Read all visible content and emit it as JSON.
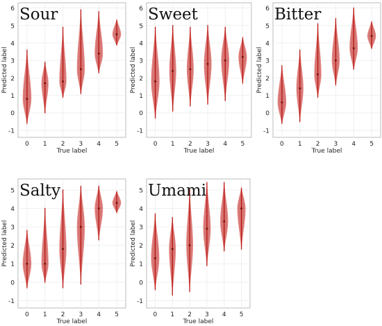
{
  "chart_data": [
    {
      "type": "violin",
      "title": "Sour",
      "xlabel": "True label",
      "ylabel": "Predicted label",
      "categories": [
        "0",
        "1",
        "2",
        "3",
        "4",
        "5"
      ],
      "ylim": [
        -1.4,
        6.3
      ],
      "yticks": [
        "-1",
        "0",
        "1",
        "2",
        "3",
        "4",
        "5",
        "6"
      ],
      "grid": true,
      "series": [
        {
          "values": [
            {
              "x": "0",
              "median": 0.8,
              "min": -0.7,
              "max": 3.7
            },
            {
              "x": "1",
              "median": 1.7,
              "min": -0.1,
              "max": 3.0
            },
            {
              "x": "2",
              "median": 1.8,
              "min": 0.8,
              "max": 5.0
            },
            {
              "x": "3",
              "median": 2.5,
              "min": 1.0,
              "max": 6.0
            },
            {
              "x": "4",
              "median": 3.4,
              "min": 2.2,
              "max": 5.9
            },
            {
              "x": "5",
              "median": 4.5,
              "min": 3.8,
              "max": 5.4
            }
          ]
        }
      ]
    },
    {
      "type": "violin",
      "title": "Sweet",
      "xlabel": "True label",
      "ylabel": "Predicted label",
      "categories": [
        "0",
        "1",
        "2",
        "3",
        "4",
        "5"
      ],
      "ylim": [
        -1.4,
        6.3
      ],
      "yticks": [
        "-1",
        "0",
        "1",
        "2",
        "3",
        "4",
        "5",
        "6"
      ],
      "grid": true,
      "series": [
        {
          "values": [
            {
              "x": "0",
              "median": 1.8,
              "min": -0.4,
              "max": 5.0
            },
            {
              "x": "1",
              "median": 2.4,
              "min": 0.0,
              "max": 5.1
            },
            {
              "x": "2",
              "median": 2.5,
              "min": 0.3,
              "max": 5.0
            },
            {
              "x": "3",
              "median": 2.8,
              "min": 0.4,
              "max": 5.1
            },
            {
              "x": "4",
              "median": 3.0,
              "min": 0.6,
              "max": 5.0
            },
            {
              "x": "5",
              "median": 3.2,
              "min": 1.6,
              "max": 4.4
            }
          ]
        }
      ]
    },
    {
      "type": "violin",
      "title": "Bitter",
      "xlabel": "True label",
      "ylabel": "Predicted label",
      "categories": [
        "0",
        "1",
        "2",
        "3",
        "4",
        "5"
      ],
      "ylim": [
        -1.4,
        6.3
      ],
      "yticks": [
        "-1",
        "0",
        "1",
        "2",
        "3",
        "4",
        "5",
        "6"
      ],
      "grid": true,
      "series": [
        {
          "values": [
            {
              "x": "0",
              "median": 0.6,
              "min": -0.7,
              "max": 2.8
            },
            {
              "x": "1",
              "median": 1.4,
              "min": -0.6,
              "max": 3.7
            },
            {
              "x": "2",
              "median": 2.2,
              "min": 0.8,
              "max": 5.2
            },
            {
              "x": "3",
              "median": 3.0,
              "min": 1.5,
              "max": 5.5
            },
            {
              "x": "4",
              "median": 3.7,
              "min": 2.4,
              "max": 6.1
            },
            {
              "x": "5",
              "median": 4.4,
              "min": 3.6,
              "max": 5.3
            }
          ]
        }
      ]
    },
    {
      "type": "violin",
      "title": "Salty",
      "xlabel": "True label",
      "ylabel": "Predicted label",
      "categories": [
        "0",
        "1",
        "2",
        "3",
        "4",
        "5"
      ],
      "ylim": [
        -1.4,
        5.6
      ],
      "yticks": [
        "-1",
        "0",
        "1",
        "2",
        "3",
        "4",
        "5"
      ],
      "grid": true,
      "series": [
        {
          "values": [
            {
              "x": "0",
              "median": 1.0,
              "min": -0.4,
              "max": 2.9
            },
            {
              "x": "1",
              "median": 1.0,
              "min": -0.1,
              "max": 4.1
            },
            {
              "x": "2",
              "median": 1.8,
              "min": -0.4,
              "max": 5.1
            },
            {
              "x": "3",
              "median": 3.0,
              "min": -0.2,
              "max": 5.3
            },
            {
              "x": "4",
              "median": 4.0,
              "min": 2.2,
              "max": 5.3
            },
            {
              "x": "5",
              "median": 4.3,
              "min": 3.7,
              "max": 5.0
            }
          ]
        }
      ]
    },
    {
      "type": "violin",
      "title": "Umami",
      "xlabel": "True label",
      "ylabel": "Predicted label",
      "categories": [
        "0",
        "1",
        "2",
        "3",
        "4",
        "5"
      ],
      "ylim": [
        -1.4,
        5.6
      ],
      "yticks": [
        "-1",
        "0",
        "1",
        "2",
        "3",
        "4",
        "5"
      ],
      "grid": true,
      "series": [
        {
          "values": [
            {
              "x": "0",
              "median": 1.3,
              "min": -0.5,
              "max": 3.8
            },
            {
              "x": "1",
              "median": 1.8,
              "min": -0.8,
              "max": 3.6
            },
            {
              "x": "2",
              "median": 2.0,
              "min": -0.6,
              "max": 5.1
            },
            {
              "x": "3",
              "median": 2.9,
              "min": 0.8,
              "max": 5.5
            },
            {
              "x": "4",
              "median": 3.3,
              "min": 1.6,
              "max": 5.5
            },
            {
              "x": "5",
              "median": 4.0,
              "min": 1.7,
              "max": 5.2
            }
          ]
        }
      ]
    }
  ],
  "colors": {
    "violin_fill": "#d9534f",
    "violin_overlay": "#9aa8b2",
    "inner_line": "#b8140f",
    "grid": "#ececec",
    "axis": "#aaaaaa",
    "text": "#222222"
  }
}
